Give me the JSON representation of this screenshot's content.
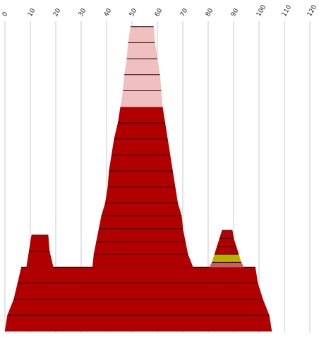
{
  "chart_data": {
    "type": "area",
    "title": "",
    "xlabel": "",
    "ylabel": "",
    "xlim": [
      0,
      120
    ],
    "x_ticks": [
      "0",
      "10",
      "20",
      "30",
      "40",
      "50",
      "60",
      "70",
      "80",
      "90",
      "100",
      "110",
      "120"
    ],
    "grid": true,
    "colors": {
      "main": "#b00000",
      "light": "#f0c0c0",
      "accent": "#b8b000",
      "salmon": "#c86060",
      "edge": "#2a0000"
    },
    "shapes": [
      {
        "name": "Base platform",
        "color": "main",
        "levels": [
          {
            "y": 0,
            "x0": 0,
            "x1": 105
          },
          {
            "y": 1,
            "x0": 1,
            "x1": 104
          },
          {
            "y": 2,
            "x0": 3.5,
            "x1": 101.5
          },
          {
            "y": 3,
            "x0": 5,
            "x1": 99.5
          },
          {
            "y": 4,
            "x0": 6.5,
            "x1": 98.5
          }
        ]
      },
      {
        "name": "Left tower",
        "color": "main",
        "levels": [
          {
            "y": 4,
            "x0": 8.5,
            "x1": 19
          },
          {
            "y": 5,
            "x0": 9.5,
            "x1": 17.5
          },
          {
            "y": 6,
            "x0": 10.5,
            "x1": 17
          }
        ]
      },
      {
        "name": "Central peak",
        "color": "main",
        "levels": [
          {
            "y": 4,
            "x0": 34.5,
            "x1": 74
          },
          {
            "y": 4.8,
            "x0": 35,
            "x1": 72
          },
          {
            "y": 5.6,
            "x0": 36,
            "x1": 71
          },
          {
            "y": 6.4,
            "x0": 37,
            "x1": 70
          },
          {
            "y": 7.2,
            "x0": 38,
            "x1": 69.5
          },
          {
            "y": 8,
            "x0": 39.5,
            "x1": 68
          },
          {
            "y": 9,
            "x0": 40.5,
            "x1": 67
          },
          {
            "y": 10,
            "x0": 41,
            "x1": 66
          },
          {
            "y": 11,
            "x0": 42,
            "x1": 65
          },
          {
            "y": 12,
            "x0": 43,
            "x1": 64
          },
          {
            "y": 13,
            "x0": 44.5,
            "x1": 63
          },
          {
            "y": 14,
            "x0": 45.5,
            "x1": 62
          }
        ]
      },
      {
        "name": "Peak top",
        "color": "light",
        "levels": [
          {
            "y": 14,
            "x0": 45.5,
            "x1": 62
          },
          {
            "y": 15,
            "x0": 46.5,
            "x1": 61.5
          },
          {
            "y": 16,
            "x0": 47,
            "x1": 61
          },
          {
            "y": 17,
            "x0": 48,
            "x1": 60
          },
          {
            "y": 18,
            "x0": 48.5,
            "x1": 59
          },
          {
            "y": 19,
            "x0": 49.5,
            "x1": 58.5
          }
        ]
      },
      {
        "name": "Right spire",
        "color": "main",
        "levels": [
          {
            "y": 4,
            "x0": 80.5,
            "x1": 94
          },
          {
            "y": 4.3,
            "x0": 81.5,
            "x1": 93
          },
          {
            "y": 4.8,
            "x0": 82.5,
            "x1": 92
          },
          {
            "y": 5.3,
            "x0": 83.5,
            "x1": 91
          },
          {
            "y": 5.8,
            "x0": 84.5,
            "x1": 90
          },
          {
            "y": 6.3,
            "x0": 85.5,
            "x1": 89.5
          }
        ]
      }
    ],
    "accent_layers": [
      {
        "name": "salmon band",
        "color": "salmon",
        "shape": "Right spire",
        "band": 0
      },
      {
        "name": "olive band",
        "color": "accent",
        "shape": "Right spire",
        "band": 1
      }
    ]
  }
}
